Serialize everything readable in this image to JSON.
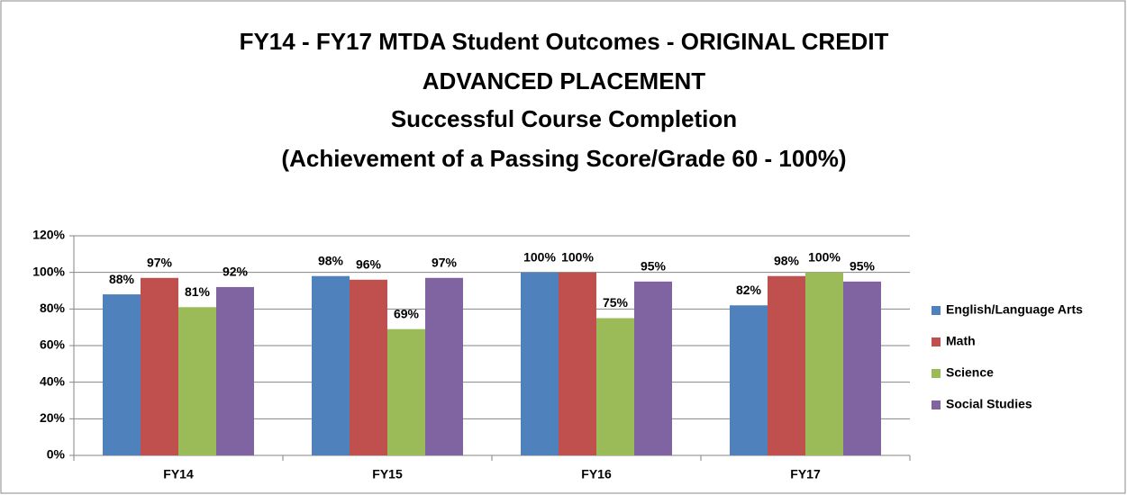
{
  "chart_data": {
    "type": "bar",
    "title": [
      "FY14 - FY17 MTDA Student Outcomes - ORIGINAL CREDIT",
      "ADVANCED PLACEMENT",
      "Successful Course Completion",
      "(Achievement of a Passing Score/Grade 60 - 100%)"
    ],
    "categories": [
      "FY14",
      "FY15",
      "FY16",
      "FY17"
    ],
    "series": [
      {
        "name": "English/Language Arts",
        "color": "#4f81bd",
        "values": [
          88,
          98,
          100,
          82
        ],
        "value_labels": [
          "88%",
          "98%",
          "100%",
          "82%"
        ]
      },
      {
        "name": "Math",
        "color": "#c0504d",
        "values": [
          97,
          96,
          100,
          98
        ],
        "value_labels": [
          "97%",
          "96%",
          "100%",
          "98%"
        ]
      },
      {
        "name": "Science",
        "color": "#9bbb59",
        "values": [
          81,
          69,
          75,
          100
        ],
        "value_labels": [
          "81%",
          "69%",
          "75%",
          "100%"
        ]
      },
      {
        "name": "Social Studies",
        "color": "#8064a2",
        "values": [
          92,
          97,
          95,
          95
        ],
        "value_labels": [
          "92%",
          "97%",
          "95%",
          "95%"
        ]
      }
    ],
    "ylim": [
      0,
      120
    ],
    "yticks": [
      {
        "value": 0,
        "label": "0%"
      },
      {
        "value": 20,
        "label": "20%"
      },
      {
        "value": 40,
        "label": "40%"
      },
      {
        "value": 60,
        "label": "60%"
      },
      {
        "value": 80,
        "label": "80%"
      },
      {
        "value": 100,
        "label": "100%"
      },
      {
        "value": 120,
        "label": "120%"
      }
    ],
    "grid": true,
    "legend": "right"
  }
}
